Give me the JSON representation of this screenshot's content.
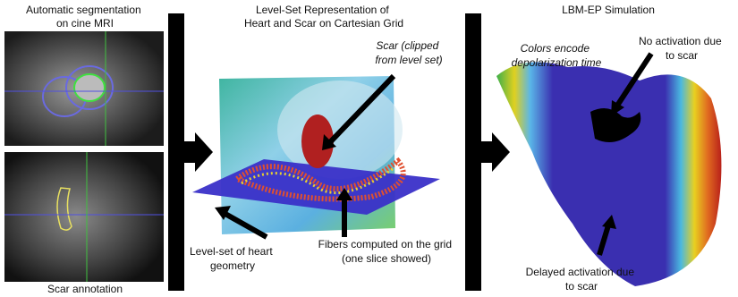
{
  "panels": [
    {
      "title": [
        "Automatic segmentation",
        "on cine MRI"
      ],
      "caption": "Scar annotation"
    },
    {
      "title": [
        "Level-Set Representation of",
        "Heart and Scar on Cartesian Grid"
      ],
      "annotations": [
        {
          "lines": [
            "Scar (clipped",
            "from level set)"
          ]
        },
        {
          "lines": [
            "Level-set of heart",
            "geometry"
          ]
        },
        {
          "lines": [
            "Fibers computed on the grid",
            "(one slice showed)"
          ]
        }
      ]
    },
    {
      "title": [
        "LBM-EP Simulation"
      ],
      "annotations": [
        {
          "lines": [
            "Colors encode",
            "depolarization time"
          ]
        },
        {
          "lines": [
            "No activation due",
            "to scar"
          ]
        },
        {
          "lines": [
            "Delayed activation due",
            "to scar"
          ]
        }
      ]
    }
  ]
}
